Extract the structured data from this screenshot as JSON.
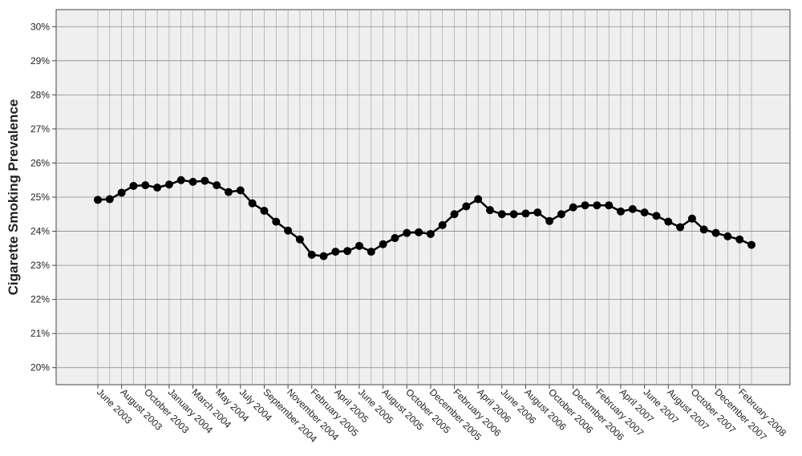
{
  "chart_data": {
    "type": "line",
    "y_label": "Cigarette Smoking Prevalence",
    "categories": [
      "June 2003",
      null,
      "August 2003",
      null,
      "October 2003",
      null,
      "January 2004",
      null,
      "March 2004",
      null,
      "May 2004",
      null,
      "July 2004",
      null,
      "September 2004",
      null,
      "November 2004",
      null,
      "February 2005",
      null,
      "April 2005",
      null,
      "June 2005",
      null,
      "August 2005",
      null,
      "October 2005",
      null,
      "December 2005",
      null,
      "February 2006",
      null,
      "April 2006",
      null,
      "June 2006",
      null,
      "August 2006",
      null,
      "October 2006",
      null,
      "December 2006",
      null,
      "February 2007",
      null,
      "April 2007",
      null,
      "June 2007",
      null,
      "August 2007",
      null,
      "October 2007",
      null,
      "December 2007",
      null,
      "February 2008",
      null
    ],
    "values": [
      24.92,
      24.94,
      25.13,
      25.33,
      25.35,
      25.28,
      25.37,
      25.5,
      25.45,
      25.48,
      25.35,
      25.15,
      25.2,
      24.82,
      24.6,
      24.28,
      24.02,
      23.76,
      23.31,
      23.27,
      23.4,
      23.42,
      23.57,
      23.4,
      23.62,
      23.8,
      23.95,
      23.97,
      23.92,
      24.18,
      24.5,
      24.73,
      24.94,
      24.62,
      24.5,
      24.5,
      24.52,
      24.55,
      24.3,
      24.5,
      24.7,
      24.76,
      24.76,
      24.76,
      24.58,
      24.65,
      24.55,
      24.45,
      24.28,
      24.12,
      24.37,
      24.05,
      23.95,
      23.85,
      23.76,
      23.6
    ],
    "color": "#000000",
    "ylim": [
      19.5,
      30.5
    ],
    "yticks": [
      {
        "value": 20,
        "label": "20%"
      },
      {
        "value": 21,
        "label": "21%"
      },
      {
        "value": 22,
        "label": "22%"
      },
      {
        "value": 23,
        "label": "23%"
      },
      {
        "value": 24,
        "label": "24%"
      },
      {
        "value": 25,
        "label": "25%"
      },
      {
        "value": 26,
        "label": "26%"
      },
      {
        "value": 27,
        "label": "27%"
      },
      {
        "value": 28,
        "label": "28%"
      },
      {
        "value": 29,
        "label": "29%"
      },
      {
        "value": 30,
        "label": "30%"
      }
    ],
    "grid": true
  }
}
